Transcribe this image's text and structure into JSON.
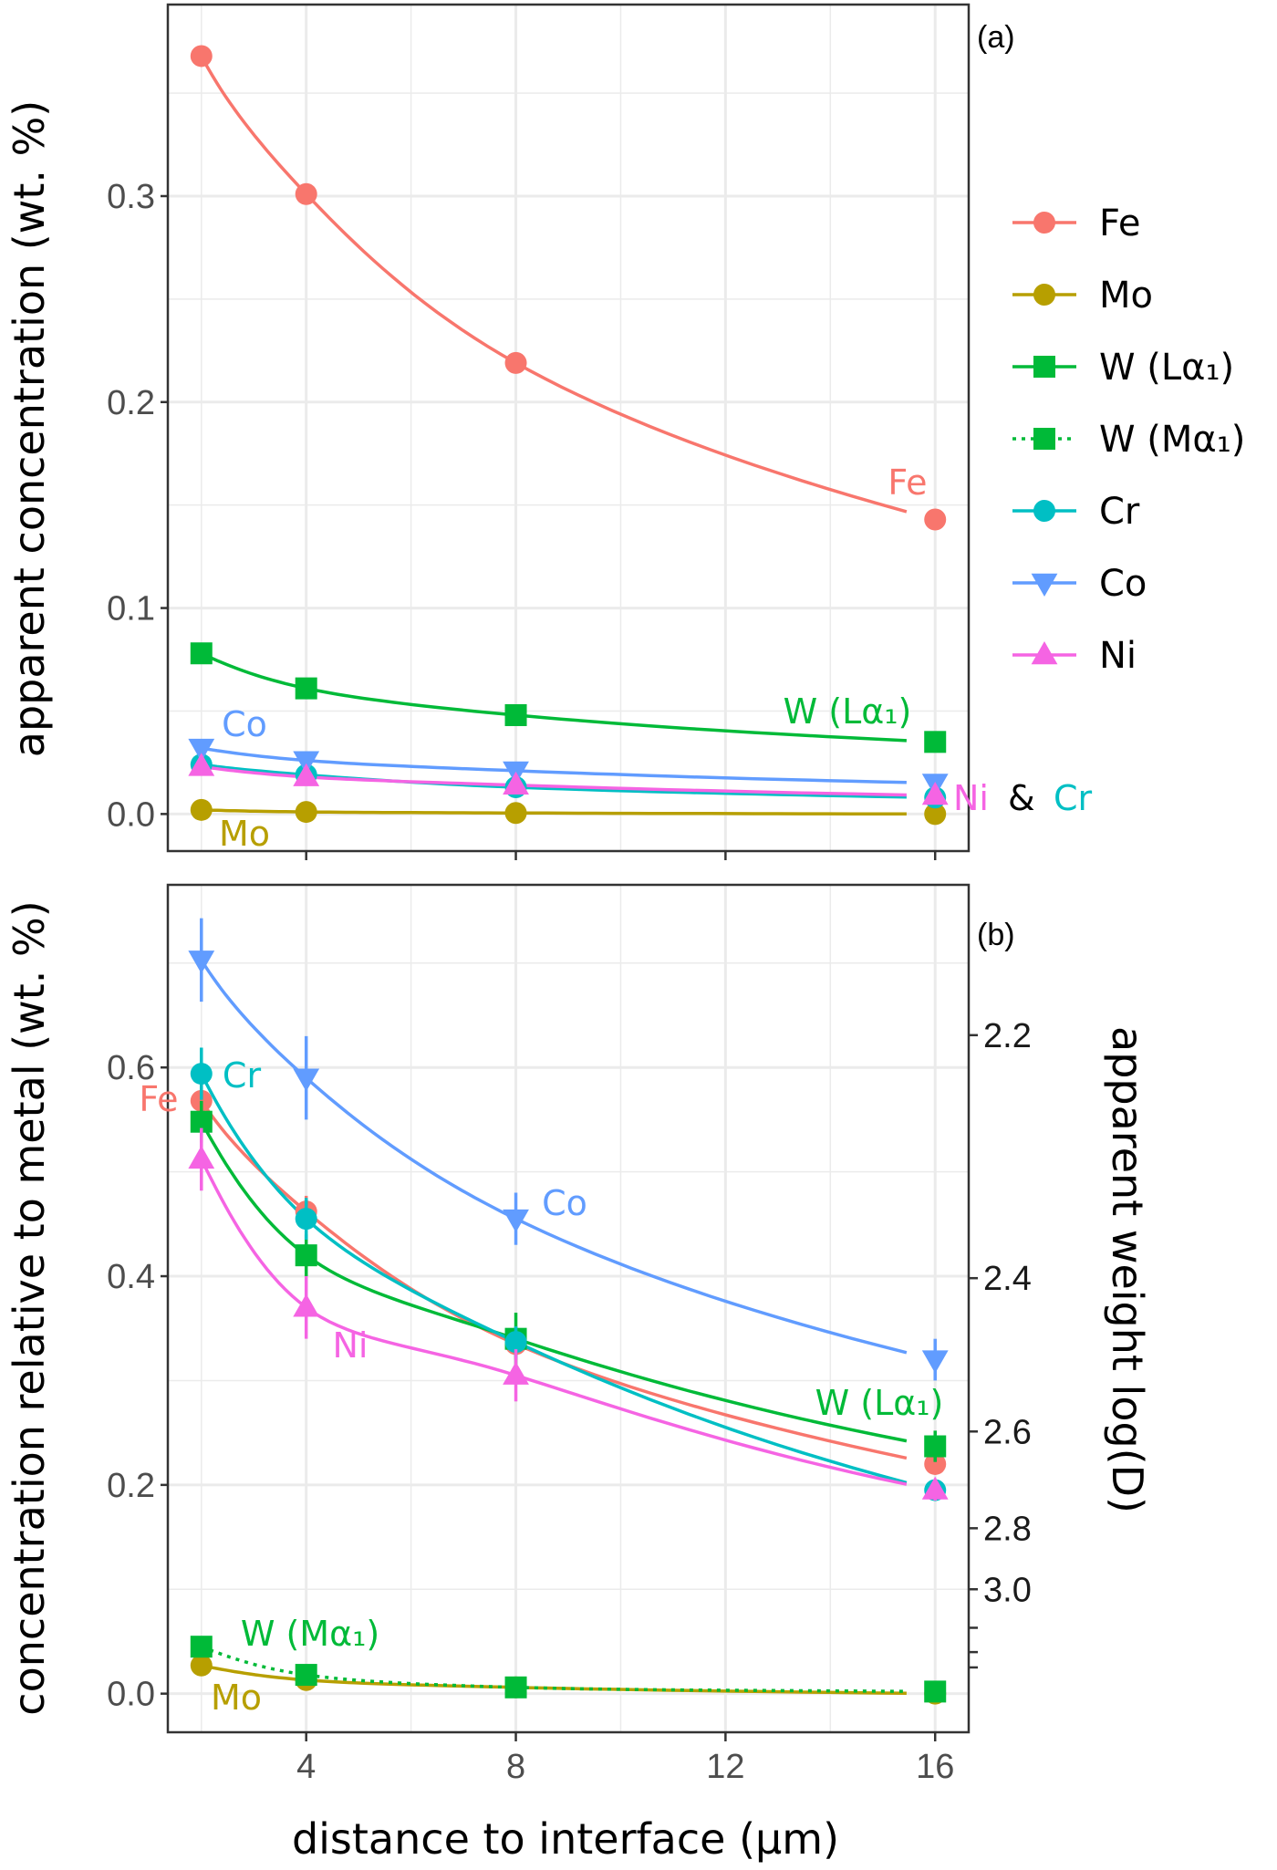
{
  "chart_data": [
    {
      "type": "line",
      "panel_label": "(a)",
      "xlabel": "",
      "ylabel": "apparent concentration (wt. %)",
      "xlim": [
        1.36,
        16.64
      ],
      "ylim": [
        -0.018,
        0.393
      ],
      "x_ticks": [
        4,
        8,
        12,
        16
      ],
      "y_ticks": [
        0.0,
        0.1,
        0.2,
        0.3
      ],
      "y_tick_labels": [
        "0.0",
        "0.1",
        "0.2",
        "0.3"
      ],
      "grid": true,
      "x": [
        2,
        4,
        8,
        16
      ],
      "series": [
        {
          "name": "Fe",
          "color": "#F8766D",
          "marker": "circle",
          "values": [
            0.368,
            0.301,
            0.219,
            0.143
          ]
        },
        {
          "name": "Mo",
          "color": "#B79F00",
          "marker": "circle",
          "values": [
            0.002,
            0.001,
            0.0005,
            0.0
          ]
        },
        {
          "name": "W (Lα₁)",
          "color": "#00BA38",
          "marker": "square",
          "values": [
            0.078,
            0.061,
            0.048,
            0.035
          ]
        },
        {
          "name": "Cr",
          "color": "#00BFC4",
          "marker": "circle",
          "values": [
            0.024,
            0.019,
            0.013,
            0.008
          ]
        },
        {
          "name": "Co",
          "color": "#619CFF",
          "marker": "triangle-down",
          "values": [
            0.032,
            0.026,
            0.021,
            0.015
          ]
        },
        {
          "name": "Ni",
          "color": "#F564E3",
          "marker": "triangle-up",
          "values": [
            0.023,
            0.018,
            0.014,
            0.009
          ]
        }
      ],
      "annotations": [
        {
          "text": "Fe",
          "color": "#F8766D"
        },
        {
          "text": "W (Lα₁)",
          "color": "#00BA38"
        },
        {
          "text": "Co",
          "color": "#619CFF"
        },
        {
          "text": "Mo",
          "color": "#B79F00"
        },
        {
          "text": "Ni",
          "color": "#F564E3"
        },
        {
          "text": "&",
          "color": "#000000"
        },
        {
          "text": "Cr",
          "color": "#00BFC4"
        }
      ]
    },
    {
      "type": "line",
      "panel_label": "(b)",
      "xlabel": "distance to interface (µm)",
      "ylabel": "concentration relative to metal (wt. %)",
      "y2label": "apparent weight log(D)",
      "xlim": [
        1.36,
        16.64
      ],
      "ylim": [
        -0.037,
        0.775
      ],
      "x_ticks": [
        4,
        8,
        12,
        16
      ],
      "x_tick_labels": [
        "4",
        "8",
        "12",
        "16"
      ],
      "y_ticks": [
        0.0,
        0.2,
        0.4,
        0.6
      ],
      "y_tick_labels": [
        "0.0",
        "0.2",
        "0.4",
        "0.6"
      ],
      "y2_ticks": [
        2.2,
        2.4,
        2.6,
        2.8,
        3.0,
        3.2,
        3.4,
        3.6
      ],
      "y2_tick_labels": [
        "2.2",
        "2.4",
        "2.6",
        "2.8",
        "3.0",
        "",
        "",
        ""
      ],
      "grid": true,
      "x": [
        2,
        4,
        8,
        16
      ],
      "series": [
        {
          "name": "Fe",
          "color": "#F8766D",
          "marker": "circle",
          "values": [
            0.568,
            0.462,
            0.335,
            0.22
          ],
          "err": [
            0.02,
            0.015,
            0.015,
            0.01
          ]
        },
        {
          "name": "Mo",
          "color": "#B79F00",
          "marker": "circle",
          "values": [
            0.027,
            0.013,
            0.006,
            0.0
          ],
          "err": [
            0,
            0,
            0,
            0
          ]
        },
        {
          "name": "W (Lα₁)",
          "color": "#00BA38",
          "marker": "square",
          "values": [
            0.548,
            0.42,
            0.34,
            0.237
          ],
          "err": [
            0.02,
            0.02,
            0.025,
            0.015
          ]
        },
        {
          "name": "W (Mα₁)",
          "color": "#00BA38",
          "marker": "square",
          "dashed": true,
          "values": [
            0.045,
            0.018,
            0.006,
            0.002
          ],
          "err": [
            0,
            0,
            0,
            0
          ]
        },
        {
          "name": "Cr",
          "color": "#00BFC4",
          "marker": "circle",
          "values": [
            0.594,
            0.455,
            0.337,
            0.195
          ],
          "err": [
            0.025,
            0.02,
            0.015,
            0.01
          ]
        },
        {
          "name": "Co",
          "color": "#619CFF",
          "marker": "triangle-down",
          "values": [
            0.703,
            0.59,
            0.455,
            0.32
          ],
          "err": [
            0.04,
            0.04,
            0.025,
            0.02
          ]
        },
        {
          "name": "Ni",
          "color": "#F564E3",
          "marker": "triangle-up",
          "values": [
            0.512,
            0.37,
            0.305,
            0.195
          ],
          "err": [
            0.03,
            0.03,
            0.025,
            0.01
          ]
        }
      ],
      "annotations": [
        {
          "text": "Cr",
          "color": "#00BFC4"
        },
        {
          "text": "Fe",
          "color": "#F8766D"
        },
        {
          "text": "Co",
          "color": "#619CFF"
        },
        {
          "text": "Ni",
          "color": "#F564E3"
        },
        {
          "text": "W (Lα₁)",
          "color": "#00BA38"
        },
        {
          "text": "W (Mα₁)",
          "color": "#00BA38"
        },
        {
          "text": "Mo",
          "color": "#B79F00"
        }
      ]
    }
  ],
  "legend": {
    "placement": "right",
    "items": [
      {
        "label": "Fe",
        "color": "#F8766D",
        "marker": "circle"
      },
      {
        "label": "Mo",
        "color": "#B79F00",
        "marker": "circle"
      },
      {
        "label": "W (Lα₁)",
        "color": "#00BA38",
        "marker": "square"
      },
      {
        "label": "W (Mα₁)",
        "color": "#00BA38",
        "marker": "square",
        "dashed": true
      },
      {
        "label": "Cr",
        "color": "#00BFC4",
        "marker": "circle"
      },
      {
        "label": "Co",
        "color": "#619CFF",
        "marker": "triangle-down"
      },
      {
        "label": "Ni",
        "color": "#F564E3",
        "marker": "triangle-up"
      }
    ]
  }
}
